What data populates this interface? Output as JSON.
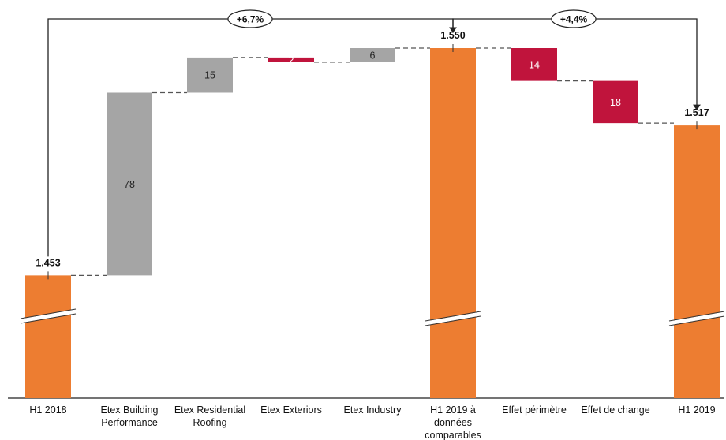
{
  "chart_data": {
    "type": "bar",
    "variant": "waterfall",
    "categories": [
      "H1 2018",
      "Etex Building Performance",
      "Etex Residential Roofing",
      "Etex Exteriors",
      "Etex Industry",
      "H1 2019 à données comparables",
      "Effet périmètre",
      "Effet de change",
      "H1 2019"
    ],
    "category_lines": [
      [
        "H1 2018"
      ],
      [
        "Etex Building",
        "Performance"
      ],
      [
        "Etex Residential",
        "Roofing"
      ],
      [
        "Etex Exteriors"
      ],
      [
        "Etex Industry"
      ],
      [
        "H1 2019 à",
        "données",
        "comparables"
      ],
      [
        "Effet périmètre"
      ],
      [
        "Effet de change"
      ],
      [
        "H1 2019"
      ]
    ],
    "steps": [
      {
        "kind": "total",
        "value": 1453,
        "label": "1.453",
        "color": "#ED7D31"
      },
      {
        "kind": "increase",
        "value": 78,
        "label": "78",
        "color": "#A5A5A5"
      },
      {
        "kind": "increase",
        "value": 15,
        "label": "15",
        "color": "#A5A5A5"
      },
      {
        "kind": "decrease",
        "value": 2,
        "label": "2",
        "color": "#C0143C"
      },
      {
        "kind": "increase",
        "value": 6,
        "label": "6",
        "color": "#A5A5A5"
      },
      {
        "kind": "total",
        "value": 1550,
        "label": "1.550",
        "color": "#ED7D31"
      },
      {
        "kind": "decrease",
        "value": 14,
        "label": "14",
        "color": "#C0143C"
      },
      {
        "kind": "decrease",
        "value": 18,
        "label": "18",
        "color": "#C0143C"
      },
      {
        "kind": "total",
        "value": 1517,
        "label": "1.517",
        "color": "#ED7D31"
      }
    ],
    "growth_annotations": [
      {
        "from": 0,
        "to": 5,
        "label": "+6,7%"
      },
      {
        "from": 5,
        "to": 8,
        "label": "+4,4%"
      }
    ],
    "axis_break": true,
    "ylim": [
      1350,
      1570
    ],
    "grid": false,
    "legend": "none",
    "colors": {
      "total": "#ED7D31",
      "increase": "#A5A5A5",
      "decrease": "#C0143C"
    }
  }
}
